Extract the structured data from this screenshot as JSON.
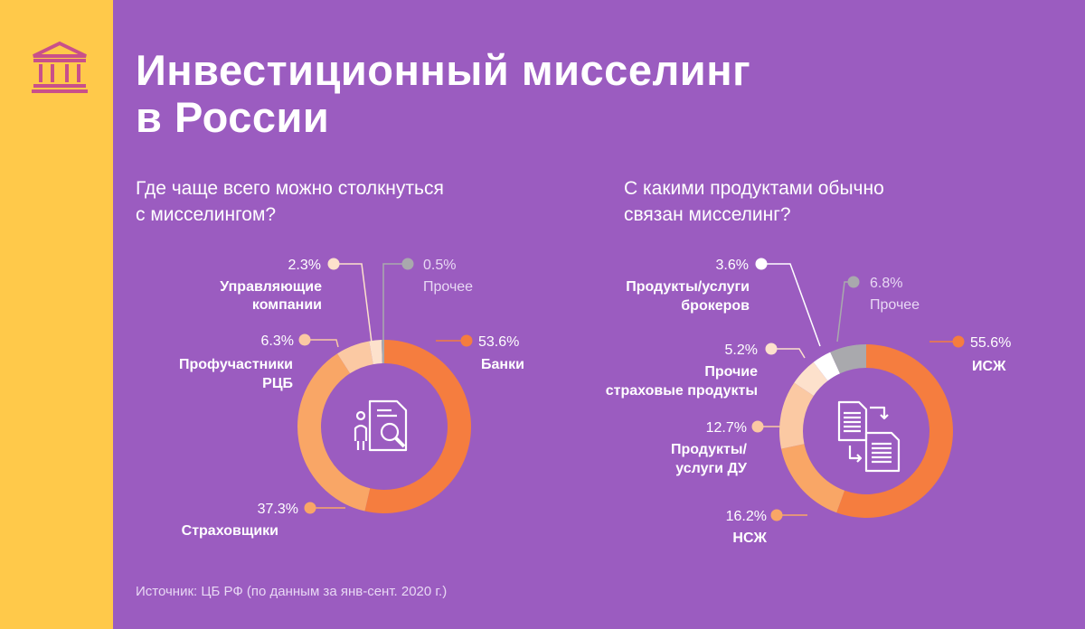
{
  "title_lines": [
    "Инвестиционный мисселинг",
    "в России"
  ],
  "source": "Источник: ЦБ РФ (по данным за янв-сент. 2020 г.)",
  "colors": {
    "background": "#9b5cc0",
    "sidebar": "#ffc94a",
    "logo": "#c9508a"
  },
  "chart_data": [
    {
      "type": "pie",
      "variant": "donut",
      "title_lines": [
        "Где чаще всего можно столкнуться",
        "с мисселингом?"
      ],
      "center_icon": "document-search-icon",
      "slices": [
        {
          "label_lines": [
            "Банки"
          ],
          "value": 53.6,
          "value_label": "53.6%",
          "color": "#f57d3f"
        },
        {
          "label_lines": [
            "Страховщики"
          ],
          "value": 37.3,
          "value_label": "37.3%",
          "color": "#f9a666"
        },
        {
          "label_lines": [
            "Профучастники",
            "РЦБ"
          ],
          "value": 6.3,
          "value_label": "6.3%",
          "color": "#fbc9a3"
        },
        {
          "label_lines": [
            "Управляющие",
            "компании"
          ],
          "value": 2.3,
          "value_label": "2.3%",
          "color": "#fde1cc"
        },
        {
          "label_lines": [
            "Прочее"
          ],
          "value": 0.5,
          "value_label": "0.5%",
          "color": "#a9a9ad"
        }
      ]
    },
    {
      "type": "pie",
      "variant": "donut",
      "title_lines": [
        "С какими продуктами обычно",
        "связан мисселинг?"
      ],
      "center_icon": "documents-exchange-icon",
      "slices": [
        {
          "label_lines": [
            "ИСЖ"
          ],
          "value": 55.6,
          "value_label": "55.6%",
          "color": "#f57d3f"
        },
        {
          "label_lines": [
            "НСЖ"
          ],
          "value": 16.2,
          "value_label": "16.2%",
          "color": "#f9a666"
        },
        {
          "label_lines": [
            "Продукты/",
            "услуги ДУ"
          ],
          "value": 12.7,
          "value_label": "12.7%",
          "color": "#fbc9a3"
        },
        {
          "label_lines": [
            "Прочие",
            "страховые продукты"
          ],
          "value": 5.2,
          "value_label": "5.2%",
          "color": "#fde1cc"
        },
        {
          "label_lines": [
            "Продукты/услуги",
            "брокеров"
          ],
          "value": 3.6,
          "value_label": "3.6%",
          "color": "#ffffff"
        },
        {
          "label_lines": [
            "Прочее"
          ],
          "value": 6.8,
          "value_label": "6.8%",
          "color": "#a9a9ad"
        }
      ]
    }
  ]
}
